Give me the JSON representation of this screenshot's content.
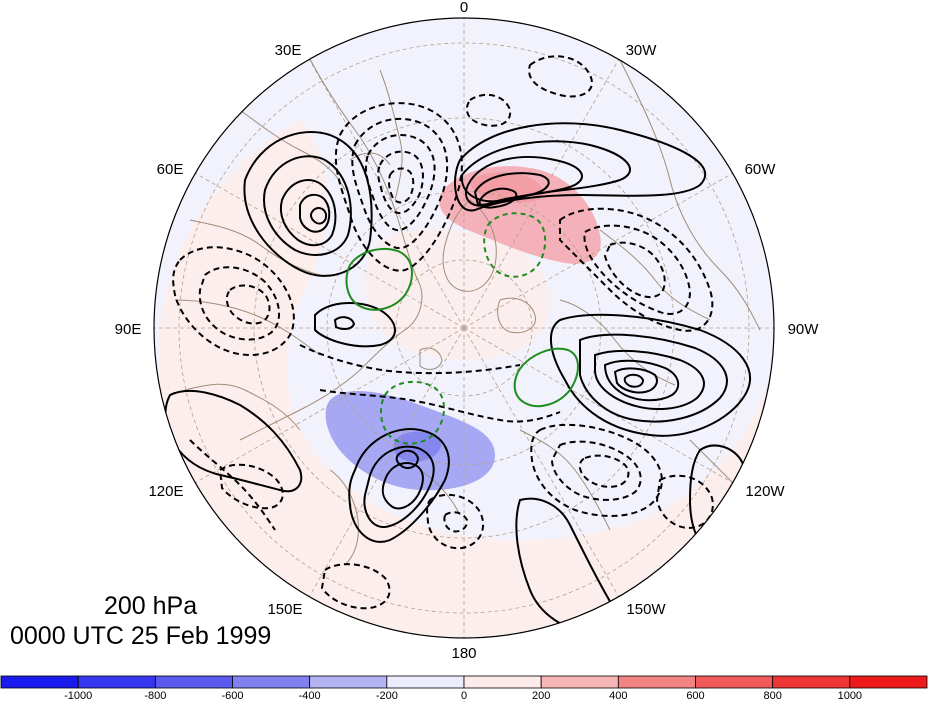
{
  "map": {
    "projection": "north-polar-stereographic",
    "longitude_labels": {
      "top": "0",
      "l30e": "30E",
      "l30w": "30W",
      "l60e": "60E",
      "l60w": "60W",
      "l90e": "90E",
      "l90w": "90W",
      "l120e": "120E",
      "l120w": "120W",
      "l150e": "150E",
      "l150w": "150W",
      "bottom": "180"
    },
    "colors": {
      "disk_background": "#f2f2fd",
      "positive_shade": "#f6a6ad",
      "negative_shade": "#8c8ff0",
      "solid_contour": "#000000",
      "dashed_contour": "#000000",
      "green_contour": "#1e8c1e",
      "coastline": "#a08c78",
      "gridline": "#b4a08c"
    }
  },
  "title": {
    "level": "200 hPa",
    "time": "0000 UTC 25 Feb 1999"
  },
  "colorbar": {
    "labels": [
      "-1000",
      "-800",
      "-600",
      "-400",
      "-200",
      "0",
      "200",
      "400",
      "600",
      "800",
      "1000"
    ],
    "colors": [
      "#1a1aee",
      "#3636ee",
      "#5a5aee",
      "#8080ee",
      "#b4b4f4",
      "#ececfc",
      "#fdeaea",
      "#f6b6b6",
      "#f48484",
      "#f05a5a",
      "#ee3636",
      "#ee1a1a"
    ]
  }
}
